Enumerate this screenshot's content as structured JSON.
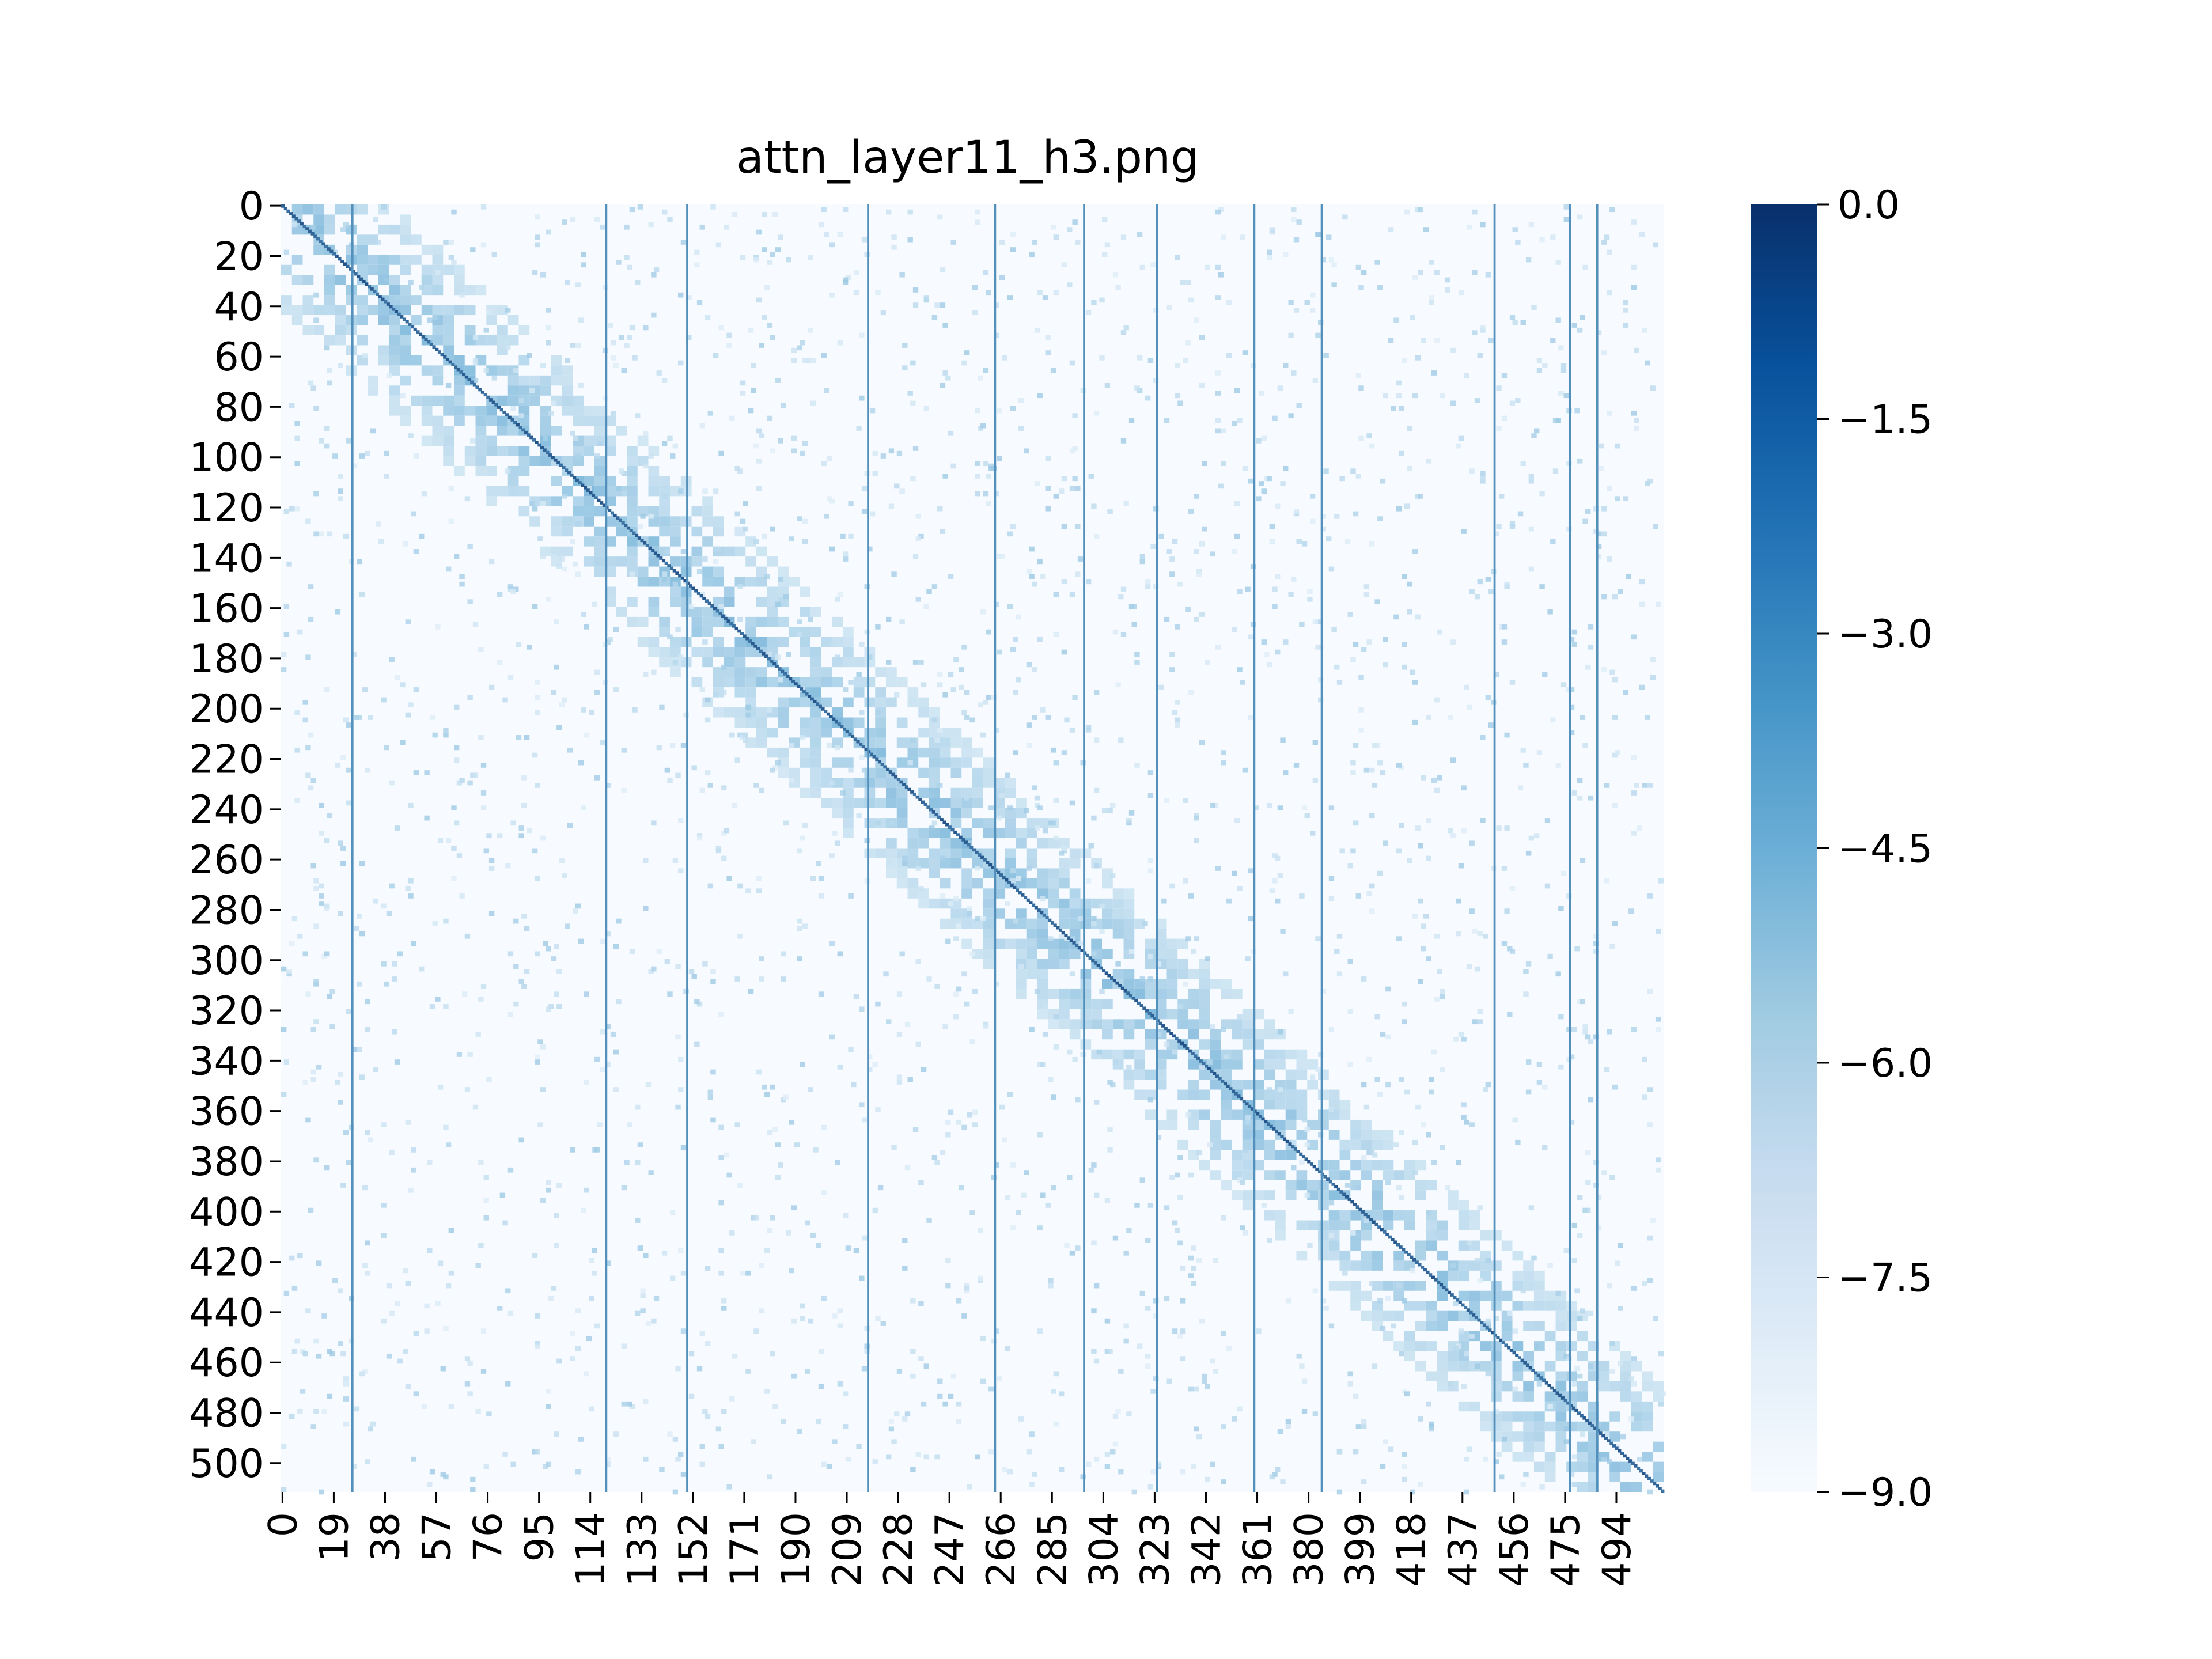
{
  "chart_data": {
    "type": "heatmap",
    "title": "attn_layer11_h3.png",
    "xlabel": "",
    "ylabel": "",
    "matrix_size": 512,
    "x_tick_labels": [
      "0",
      "19",
      "38",
      "57",
      "76",
      "95",
      "114",
      "133",
      "152",
      "171",
      "190",
      "209",
      "228",
      "247",
      "266",
      "285",
      "304",
      "323",
      "342",
      "361",
      "380",
      "399",
      "418",
      "437",
      "456",
      "475",
      "494"
    ],
    "y_tick_labels": [
      "0",
      "20",
      "40",
      "60",
      "80",
      "100",
      "120",
      "140",
      "160",
      "180",
      "200",
      "220",
      "240",
      "260",
      "280",
      "300",
      "320",
      "340",
      "360",
      "380",
      "400",
      "420",
      "440",
      "460",
      "480",
      "500"
    ],
    "colormap": "Blues",
    "colorbar": {
      "min": -9.0,
      "max": 0.0,
      "tick_labels": [
        "0.0",
        "−1.5",
        "−3.0",
        "−4.5",
        "−6.0",
        "−7.5",
        "−9.0"
      ],
      "tick_values": [
        0.0,
        -1.5,
        -3.0,
        -4.5,
        -6.0,
        -7.5,
        -9.0
      ],
      "placement": "right"
    },
    "strong_columns": [
      26,
      120,
      150,
      217,
      264,
      297,
      324,
      360,
      385,
      449,
      477,
      487
    ],
    "diagonal": "strong main diagonal (self-attention)",
    "grid": false,
    "colors": {
      "low": "#f7fbff",
      "mid": "#6baed6",
      "high": "#08306b"
    }
  }
}
